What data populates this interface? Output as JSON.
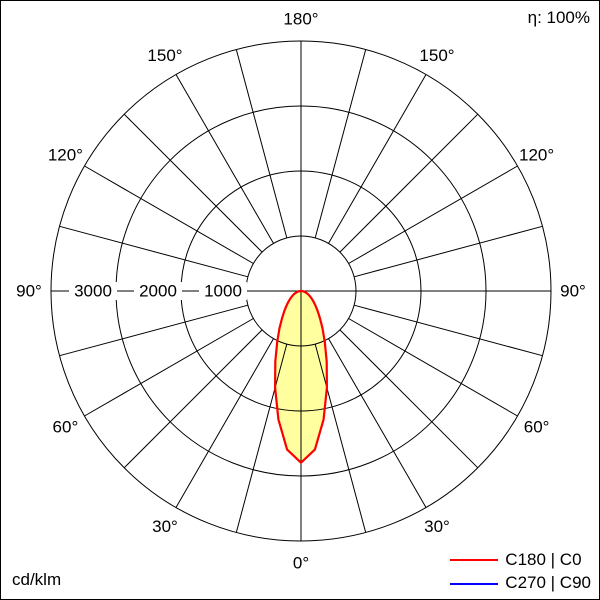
{
  "header": {
    "efficiency": "η: 100%"
  },
  "footer": {
    "unit": "cd/klm"
  },
  "legend": {
    "items": [
      {
        "label": "C180 | C0",
        "color": "#ff0000"
      },
      {
        "label": "C270 | C90",
        "color": "#0000ff"
      }
    ]
  },
  "colors": {
    "grid": "#000000",
    "background": "#ffffff",
    "lobe_fill": "#ffffa0"
  },
  "chart_data": {
    "type": "polar",
    "subtype": "luminous-intensity-distribution",
    "unit": "cd/klm",
    "efficiency_label": "η: 100%",
    "angle_ticks_deg": [
      0,
      30,
      60,
      90,
      120,
      150,
      180
    ],
    "angle_tick_labels": [
      "0°",
      "30°",
      "60°",
      "90°",
      "120°",
      "150°",
      "180°"
    ],
    "spoke_step_deg": 15,
    "radial_ticks": [
      1000,
      2000,
      3000
    ],
    "radial_tick_labels": [
      "1000",
      "2000",
      "3000"
    ],
    "radial_max": 3000,
    "grid": true,
    "legend_position": "bottom-right",
    "series": [
      {
        "name": "C180 | C0",
        "color": "#ff0000",
        "fill": "#ffffa0",
        "symmetric": true,
        "angles_deg": [
          0,
          5,
          10,
          15,
          20,
          25,
          30,
          35,
          40,
          45,
          50,
          55,
          60,
          65,
          70,
          75,
          80,
          85,
          90
        ],
        "values_cd_per_klm": [
          2060,
          1910,
          1565,
          1200,
          900,
          675,
          515,
          395,
          310,
          245,
          195,
          155,
          120,
          95,
          70,
          50,
          35,
          15,
          0
        ]
      },
      {
        "name": "C270 | C90",
        "color": "#0000ff",
        "note": "curve coincident with C180|C0 / not separately visible in plot"
      }
    ]
  }
}
